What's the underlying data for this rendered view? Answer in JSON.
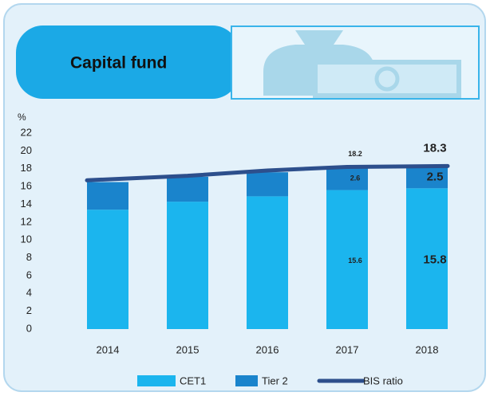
{
  "chart_data": {
    "type": "bar",
    "stacked": true,
    "title": "Capital fund",
    "y_label": "%",
    "categories": [
      "2014",
      "2015",
      "2016",
      "2017",
      "2018"
    ],
    "series": [
      {
        "name": "CET1",
        "type": "bar",
        "color": "#1bb5ee",
        "values": [
          13.4,
          14.3,
          14.9,
          15.6,
          15.8
        ],
        "value_labels": [
          null,
          null,
          null,
          "15.6",
          "15.8"
        ]
      },
      {
        "name": "Tier 2",
        "type": "bar",
        "color": "#1a84cc",
        "values": [
          3.1,
          2.8,
          2.7,
          2.6,
          2.5
        ],
        "value_labels": [
          null,
          null,
          null,
          "2.6",
          "2.5"
        ]
      },
      {
        "name": "BIS ratio",
        "type": "line",
        "color": "#2d4f8c",
        "values": [
          16.7,
          17.2,
          17.8,
          18.2,
          18.3
        ],
        "value_labels": [
          null,
          null,
          null,
          "18.2",
          "18.3"
        ]
      }
    ],
    "ylim": [
      0,
      22
    ],
    "yticks": [
      0,
      2,
      4,
      6,
      8,
      10,
      12,
      14,
      16,
      18,
      20,
      22
    ]
  }
}
